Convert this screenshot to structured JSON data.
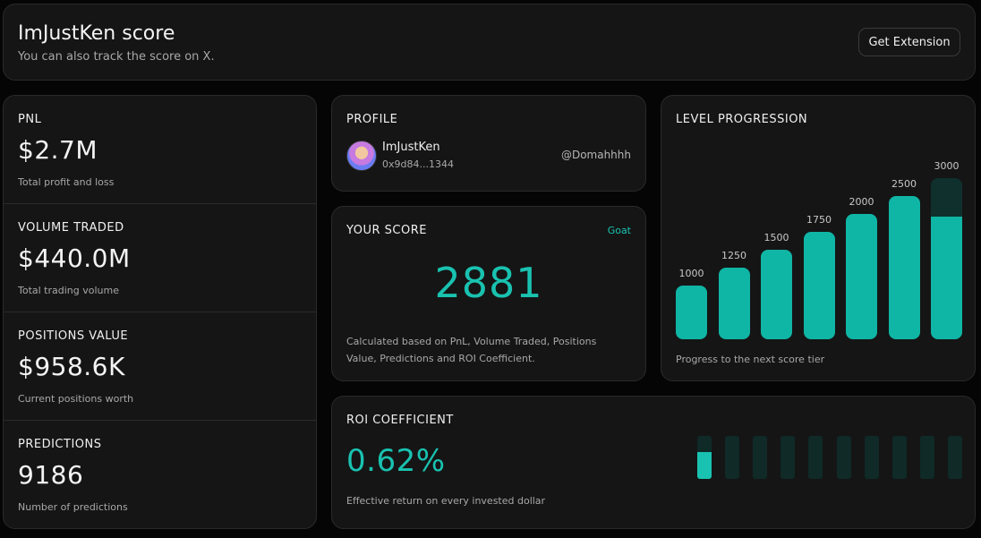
{
  "header": {
    "title": "ImJustKen score",
    "subtitle": "You can also track the score on X.",
    "button_label": "Get Extension"
  },
  "stats": [
    {
      "label": "PNL",
      "value": "$2.7M",
      "description": "Total profit and loss"
    },
    {
      "label": "VOLUME TRADED",
      "value": "$440.0M",
      "description": "Total trading volume"
    },
    {
      "label": "POSITIONS VALUE",
      "value": "$958.6K",
      "description": "Current positions worth"
    },
    {
      "label": "PREDICTIONS",
      "value": "9186",
      "description": "Number of predictions"
    }
  ],
  "profile": {
    "label": "PROFILE",
    "name": "ImJustKen",
    "address": "0x9d84...1344",
    "handle": "@Domahhhh"
  },
  "score": {
    "label": "YOUR SCORE",
    "tier": "Goat",
    "value": "2881",
    "description": "Calculated based on PnL, Volume Traded, Positions Value, Predictions and ROI Coefficient."
  },
  "level": {
    "label": "LEVEL PROGRESSION",
    "caption": "Progress to the next score tier",
    "tiers": [
      "1000",
      "1250",
      "1500",
      "1750",
      "2000",
      "2500",
      "3000"
    ],
    "current_score": 2881,
    "last_tier_progress": 0.76
  },
  "roi": {
    "label": "ROI COEFFICIENT",
    "value": "0.62%",
    "description": "Effective return on every invested dollar",
    "segments": 10,
    "progress": 0.062
  },
  "colors": {
    "accent": "#19c2b0",
    "bar": "#0fb5a5",
    "bar_track": "#10302d",
    "card": "#151515",
    "background": "#050505"
  }
}
